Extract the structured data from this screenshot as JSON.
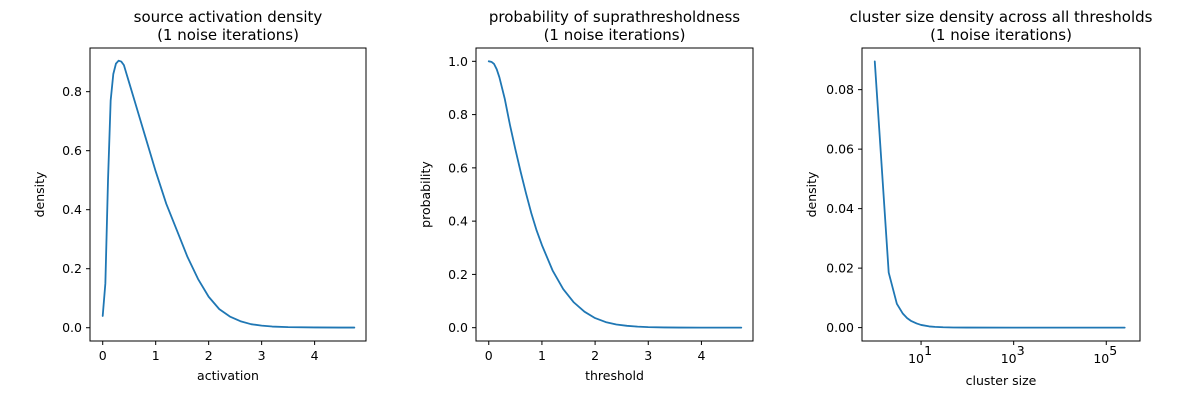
{
  "colors": {
    "line": "#1f77b4",
    "axes": "#000000",
    "background": "#ffffff"
  },
  "chart_data": [
    {
      "type": "line",
      "title": [
        "source activation density",
        "(1 noise iterations)"
      ],
      "xlabel": "activation",
      "ylabel": "density",
      "xscale": "linear",
      "xlim": [
        -0.24,
        4.97
      ],
      "ylim": [
        -0.045,
        0.948
      ],
      "xticks": [
        0,
        1,
        2,
        3,
        4
      ],
      "xtick_labels": [
        "0",
        "1",
        "2",
        "3",
        "4"
      ],
      "yticks": [
        0.0,
        0.2,
        0.4,
        0.6,
        0.8
      ],
      "ytick_labels": [
        "0.0",
        "0.2",
        "0.4",
        "0.6",
        "0.8"
      ],
      "grid": false,
      "series": [
        {
          "x": [
            0,
            0.05,
            0.1,
            0.15,
            0.2,
            0.25,
            0.3,
            0.35,
            0.4,
            0.45,
            0.5,
            0.6,
            0.7,
            0.8,
            0.9,
            1.0,
            1.2,
            1.4,
            1.6,
            1.8,
            2.0,
            2.2,
            2.4,
            2.6,
            2.8,
            3.0,
            3.2,
            3.5,
            4.0,
            4.5,
            4.75
          ],
          "y": [
            0.04,
            0.15,
            0.5,
            0.77,
            0.86,
            0.895,
            0.905,
            0.902,
            0.89,
            0.86,
            0.83,
            0.77,
            0.71,
            0.65,
            0.59,
            0.53,
            0.42,
            0.33,
            0.24,
            0.165,
            0.105,
            0.063,
            0.038,
            0.022,
            0.012,
            0.007,
            0.004,
            0.002,
            0.001,
            0.0005,
            0.0005
          ]
        }
      ]
    },
    {
      "type": "line",
      "title": [
        "probability of suprathresholdness",
        "(1 noise iterations)"
      ],
      "xlabel": "threshold",
      "ylabel": "probability",
      "xscale": "linear",
      "xlim": [
        -0.24,
        4.97
      ],
      "ylim": [
        -0.05,
        1.05
      ],
      "xticks": [
        0,
        1,
        2,
        3,
        4
      ],
      "xtick_labels": [
        "0",
        "1",
        "2",
        "3",
        "4"
      ],
      "yticks": [
        0.0,
        0.2,
        0.4,
        0.6,
        0.8,
        1.0
      ],
      "ytick_labels": [
        "0.0",
        "0.2",
        "0.4",
        "0.6",
        "0.8",
        "1.0"
      ],
      "grid": false,
      "series": [
        {
          "x": [
            0,
            0.05,
            0.1,
            0.15,
            0.2,
            0.3,
            0.4,
            0.5,
            0.6,
            0.7,
            0.8,
            0.9,
            1.0,
            1.2,
            1.4,
            1.6,
            1.8,
            2.0,
            2.2,
            2.4,
            2.6,
            2.8,
            3.0,
            3.3,
            3.6,
            4.0,
            4.5,
            4.75
          ],
          "y": [
            1.0,
            0.998,
            0.99,
            0.97,
            0.94,
            0.86,
            0.76,
            0.67,
            0.585,
            0.505,
            0.43,
            0.365,
            0.31,
            0.215,
            0.145,
            0.095,
            0.06,
            0.036,
            0.021,
            0.012,
            0.007,
            0.004,
            0.002,
            0.001,
            0.0005,
            0.0002,
            0.0001,
            0.0001
          ]
        }
      ]
    },
    {
      "type": "line",
      "title": [
        "cluster size density across all thresholds",
        "(1 noise iterations)"
      ],
      "xlabel": "cluster size",
      "ylabel": "density",
      "xscale": "log",
      "xlim": [
        0.53,
        535000
      ],
      "ylim": [
        -0.0045,
        0.094
      ],
      "xticks": [
        10,
        1000,
        100000
      ],
      "xtick_labels": [
        {
          "base": "10",
          "exp": "1"
        },
        {
          "base": "10",
          "exp": "3"
        },
        {
          "base": "10",
          "exp": "5"
        }
      ],
      "yticks": [
        0.0,
        0.02,
        0.04,
        0.06,
        0.08
      ],
      "ytick_labels": [
        "0.00",
        "0.02",
        "0.04",
        "0.06",
        "0.08"
      ],
      "grid": false,
      "series": [
        {
          "x": [
            1,
            2,
            3,
            4,
            5,
            6,
            8,
            10,
            15,
            20,
            30,
            50,
            100,
            1000,
            10000,
            100000,
            250000
          ],
          "y": [
            0.0895,
            0.0185,
            0.008,
            0.0048,
            0.0032,
            0.0023,
            0.0014,
            0.0009,
            0.0004,
            0.00025,
            0.00012,
            5e-05,
            2e-05,
            1e-06,
            5e-07,
            1e-07,
            0.0
          ]
        }
      ]
    }
  ]
}
